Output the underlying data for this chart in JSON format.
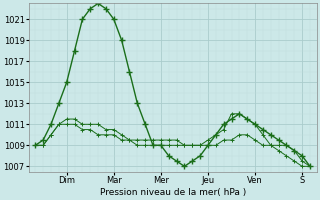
{
  "xlabel": "Pression niveau de la mer( hPa )",
  "background_color": "#cce8e8",
  "grid_color_major": "#aacccc",
  "grid_color_minor": "#c0dcdc",
  "line_color": "#1a6e1a",
  "ylim": [
    1006.5,
    1022.5
  ],
  "yticks": [
    1007,
    1009,
    1011,
    1013,
    1015,
    1017,
    1019,
    1021
  ],
  "day_labels": [
    "Dim",
    "Mar",
    "Mer",
    "Jeu",
    "Ven",
    "S"
  ],
  "day_tick_positions": [
    24,
    60,
    96,
    132,
    168,
    204
  ],
  "series1_x": [
    0,
    6,
    12,
    18,
    24,
    30,
    36,
    42,
    48,
    54,
    60,
    66,
    72,
    78,
    84,
    90,
    96,
    102,
    108,
    114,
    120,
    126,
    132,
    138,
    144,
    150,
    156,
    162,
    168,
    174,
    180,
    186,
    192,
    198,
    204,
    210
  ],
  "series1_y": [
    1009,
    1009,
    1010,
    1011,
    1011.5,
    1011.5,
    1011,
    1011,
    1011,
    1010.5,
    1010.5,
    1010,
    1009.5,
    1009.5,
    1009.5,
    1009.5,
    1009.5,
    1009.5,
    1009.5,
    1009,
    1009,
    1009,
    1009,
    1009,
    1009.5,
    1009.5,
    1010,
    1010,
    1009.5,
    1009,
    1009,
    1009,
    1009,
    1008.5,
    1007.5,
    1007
  ],
  "series2_x": [
    0,
    6,
    12,
    18,
    24,
    30,
    36,
    42,
    48,
    54,
    60,
    66,
    72,
    78,
    84,
    90,
    96,
    102,
    108,
    114,
    120,
    126,
    132,
    138,
    144,
    150,
    156,
    162,
    168,
    174,
    180,
    186,
    192,
    198,
    204,
    210
  ],
  "series2_y": [
    1009,
    1009,
    1010,
    1011,
    1011,
    1011,
    1010.5,
    1010.5,
    1010,
    1010,
    1010,
    1009.5,
    1009.5,
    1009,
    1009,
    1009,
    1009,
    1009,
    1009,
    1009,
    1009,
    1009,
    1009.5,
    1010,
    1010.5,
    1012,
    1012,
    1011.5,
    1011,
    1010,
    1009,
    1008.5,
    1008,
    1007.5,
    1007,
    1007
  ],
  "series3_x": [
    0,
    6,
    12,
    18,
    24,
    30,
    36,
    42,
    48,
    54,
    60,
    66,
    72,
    78,
    84,
    90,
    96,
    102,
    108,
    114,
    120,
    126,
    132,
    138,
    144,
    150,
    156,
    162,
    168,
    174,
    180,
    186,
    192,
    198,
    204,
    210
  ],
  "series3_y": [
    1009,
    1009.5,
    1011,
    1013,
    1015,
    1018,
    1021,
    1022,
    1022.5,
    1022,
    1021,
    1019,
    1016,
    1013,
    1011,
    1009,
    1009,
    1008,
    1007.5,
    1007,
    1007.5,
    1008,
    1009,
    1010,
    1011,
    1011.5,
    1012,
    1011.5,
    1011,
    1010.5,
    1010,
    1009.5,
    1009,
    1008.5,
    1008,
    1007
  ],
  "xlim": [
    -5,
    215
  ]
}
